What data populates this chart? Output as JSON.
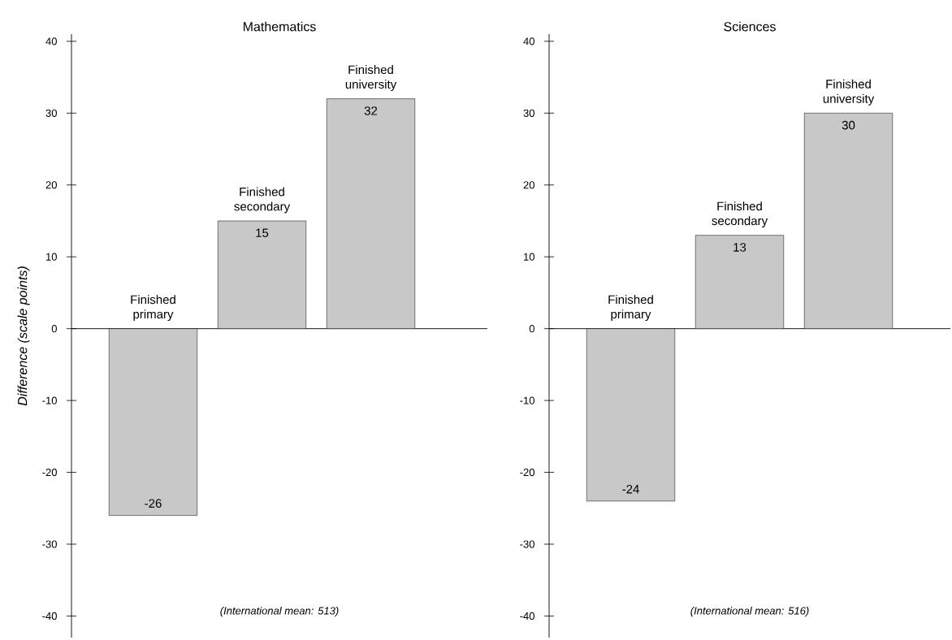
{
  "chart_data": [
    {
      "type": "bar",
      "title": "Mathematics",
      "ylabel": "Difference (scale points)",
      "categories": [
        "Finished primary",
        "Finished secondary",
        "Finished university"
      ],
      "values": [
        -26,
        15,
        32
      ],
      "color": "#c8c8c8",
      "ylim": [
        -43,
        41
      ],
      "yticks": [
        -40,
        -30,
        -20,
        -10,
        0,
        10,
        20,
        30,
        40
      ],
      "data_labels": true,
      "annotations": [
        "(International mean: 513)"
      ]
    },
    {
      "type": "bar",
      "title": "Sciences",
      "categories": [
        "Finished primary",
        "Finished secondary",
        "Finished university"
      ],
      "values": [
        -24,
        13,
        30
      ],
      "color": "#c8c8c8",
      "ylim": [
        -43,
        41
      ],
      "yticks": [
        -40,
        -30,
        -20,
        -10,
        0,
        10,
        20,
        30,
        40
      ],
      "data_labels": true,
      "annotations": [
        "(International mean: 516)"
      ]
    }
  ]
}
